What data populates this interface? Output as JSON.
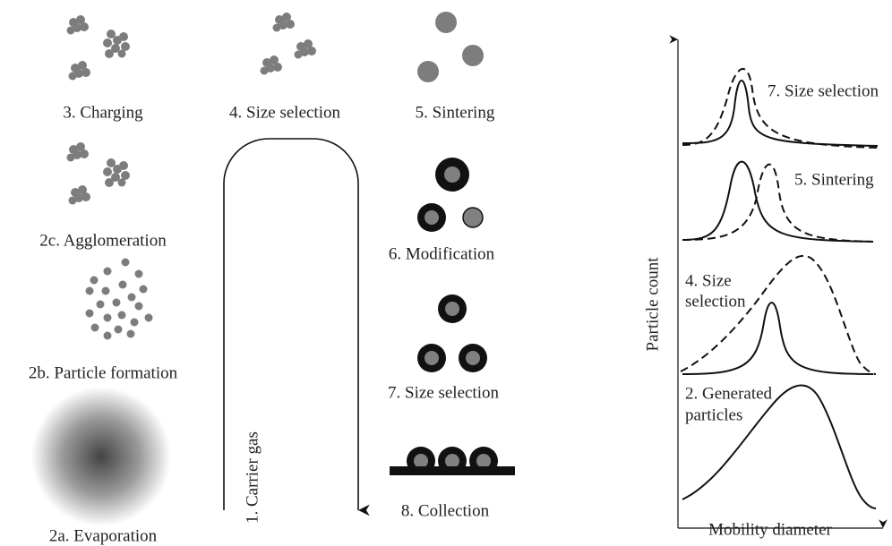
{
  "steps": [
    "3. Charging",
    "2c. Agglomeration",
    "2b. Particle formation",
    "2a. Evaporation",
    "4. Size selection",
    "5. Sintering",
    "6. Modification",
    "7. Size selection",
    "8. Collection"
  ],
  "flow": {
    "label": "1. Carrier gas"
  },
  "plot": {
    "y_label": "Particle count",
    "x_label": "Mobility diameter",
    "curve_labels": {
      "sintering_selection": "7. Size selection",
      "sintering": "5. Sintering",
      "size_selection": [
        "4. Size",
        "selection"
      ],
      "generated": [
        "2. Generated",
        "particles"
      ]
    }
  }
}
